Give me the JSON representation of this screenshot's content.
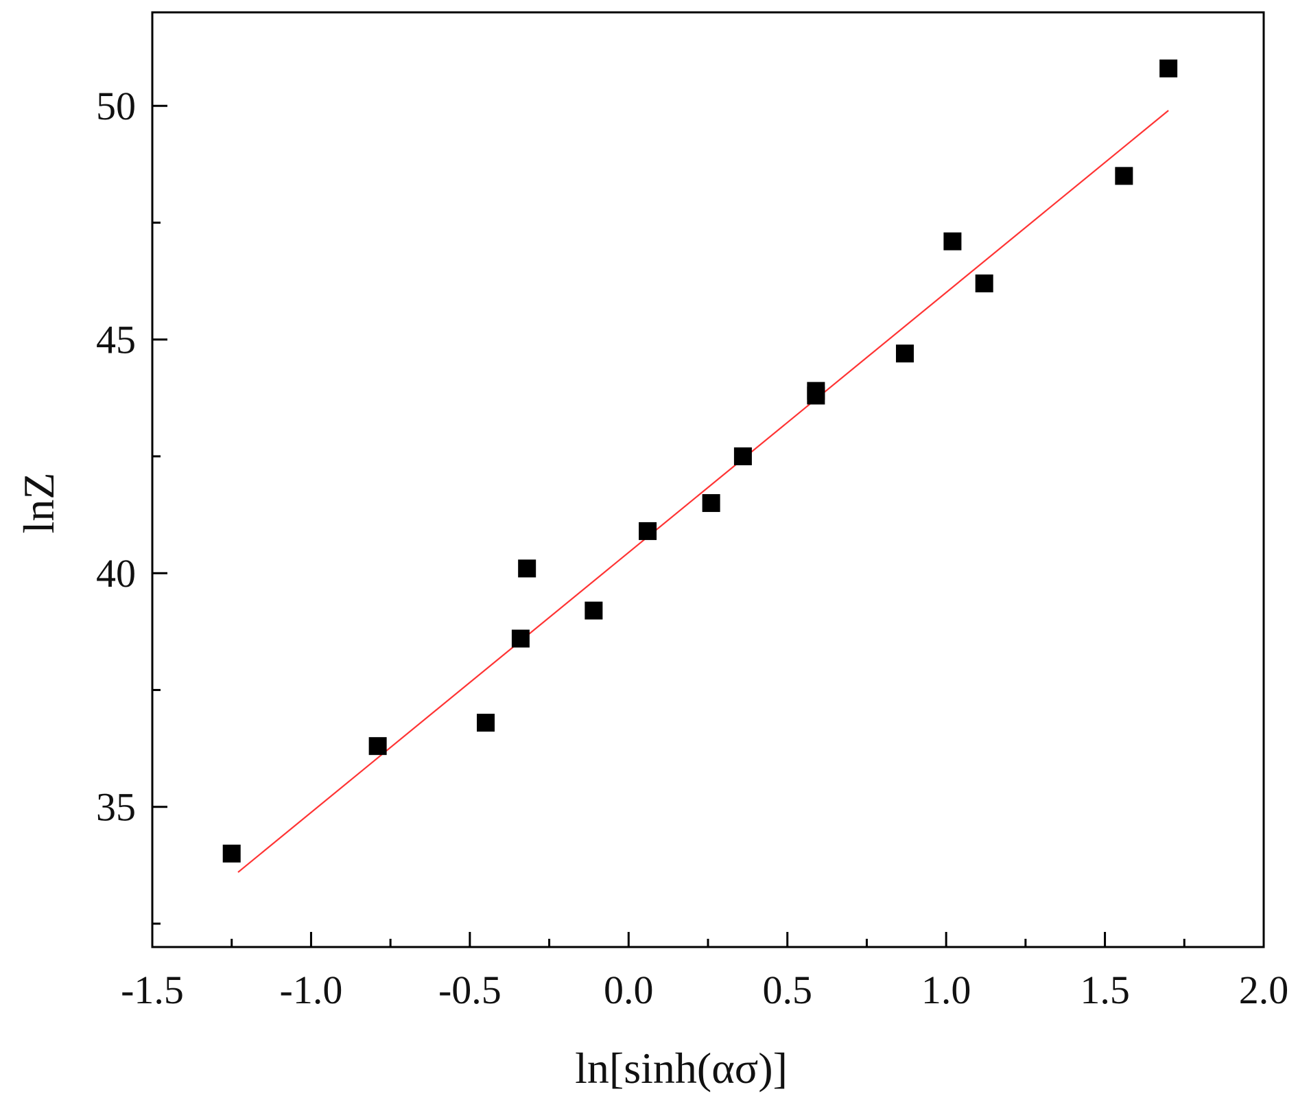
{
  "chart_data": {
    "type": "scatter",
    "title": "",
    "xlabel": "ln[sinh(ασ)]",
    "ylabel": "lnZ",
    "xlim": [
      -1.5,
      2.0
    ],
    "ylim": [
      32.0,
      52.0
    ],
    "x_ticks": [
      "-1.5",
      "-1.0",
      "-0.5",
      "0.0",
      "0.5",
      "1.0",
      "1.5",
      "2.0"
    ],
    "y_ticks": [
      "35",
      "40",
      "45",
      "50"
    ],
    "grid": false,
    "legend": "none",
    "series": [
      {
        "marker": "square",
        "color": "#000000",
        "points": [
          {
            "x": -1.25,
            "y": 34.0
          },
          {
            "x": -0.79,
            "y": 36.3
          },
          {
            "x": -0.45,
            "y": 36.8
          },
          {
            "x": -0.34,
            "y": 38.6
          },
          {
            "x": -0.32,
            "y": 40.1
          },
          {
            "x": -0.11,
            "y": 39.2
          },
          {
            "x": 0.06,
            "y": 40.9
          },
          {
            "x": 0.26,
            "y": 41.5
          },
          {
            "x": 0.36,
            "y": 42.5
          },
          {
            "x": 0.59,
            "y": 43.9
          },
          {
            "x": 0.59,
            "y": 43.8
          },
          {
            "x": 0.87,
            "y": 44.7
          },
          {
            "x": 1.02,
            "y": 47.1
          },
          {
            "x": 1.12,
            "y": 46.2
          },
          {
            "x": 1.56,
            "y": 48.5
          },
          {
            "x": 1.7,
            "y": 50.8
          }
        ]
      }
    ],
    "fit_line": {
      "color": "#ff3333",
      "points": [
        {
          "x": -1.23,
          "y": 33.6
        },
        {
          "x": 1.7,
          "y": 49.9
        }
      ]
    }
  }
}
